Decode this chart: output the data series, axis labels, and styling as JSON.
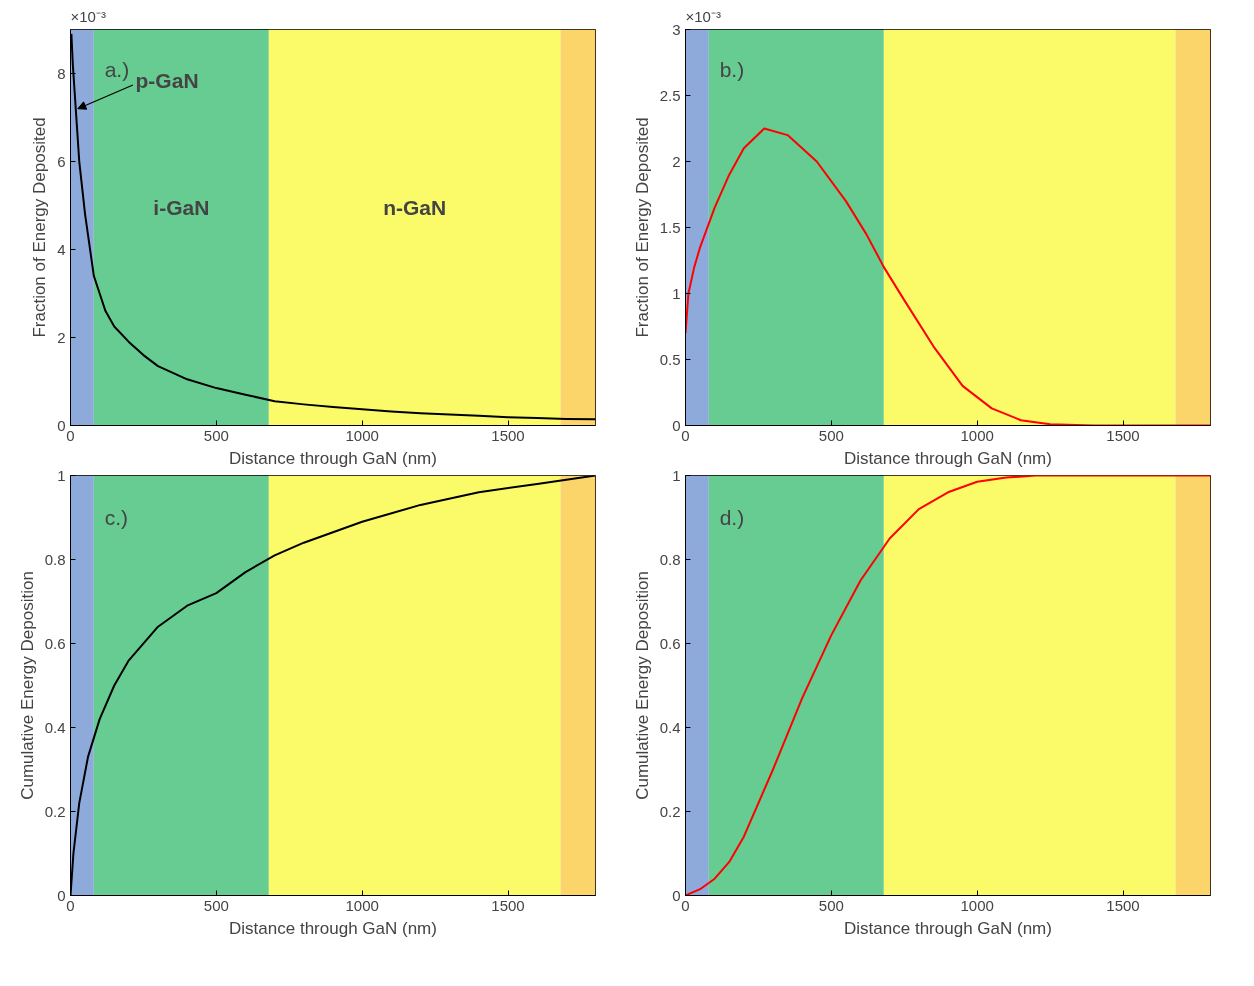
{
  "chart_data": [
    {
      "type": "line",
      "xlabel": "Distance through GaN (nm)",
      "ylabel": "Fraction of Energy Deposited",
      "xlim": [
        0,
        1800
      ],
      "xticks": [
        0,
        500,
        1000,
        1500
      ],
      "ylim": [
        0,
        9
      ],
      "yticks": [
        0,
        2,
        4,
        6,
        8
      ],
      "bands": [
        {
          "axis": "x",
          "from": 0,
          "to": 80,
          "label": null,
          "color": "#8eaadb"
        },
        {
          "axis": "x",
          "from": 80,
          "to": 680,
          "label": "i-GaN",
          "color": "#66cc92"
        },
        {
          "axis": "x",
          "from": 680,
          "to": 1680,
          "label": "n-GaN",
          "color": "#fbfb6a"
        },
        {
          "axis": "x",
          "from": 1680,
          "to": 1800,
          "label": null,
          "color": "#fbd46a"
        }
      ],
      "annotations": [
        "a.)",
        "×10⁻³",
        {
          "text": "p-GaN",
          "x": 25,
          "y": 7.2
        }
      ],
      "series": [
        {
          "color": "#000000",
          "x": [
            3,
            8,
            15,
            22,
            30,
            40,
            50,
            65,
            80,
            100,
            120,
            150,
            200,
            250,
            300,
            400,
            500,
            600,
            700,
            800,
            900,
            1000,
            1100,
            1200,
            1300,
            1400,
            1500,
            1600,
            1700,
            1800
          ],
          "values": [
            8.9,
            8.2,
            7.5,
            6.8,
            6.0,
            5.4,
            4.8,
            4.1,
            3.4,
            3.0,
            2.6,
            2.25,
            1.9,
            1.6,
            1.35,
            1.05,
            0.85,
            0.7,
            0.55,
            0.48,
            0.42,
            0.37,
            0.32,
            0.28,
            0.25,
            0.22,
            0.19,
            0.17,
            0.15,
            0.14
          ]
        }
      ]
    },
    {
      "type": "line",
      "xlabel": "Distance through GaN (nm)",
      "ylabel": "Fraction of Energy Deposited",
      "xlim": [
        0,
        1800
      ],
      "xticks": [
        0,
        500,
        1000,
        1500
      ],
      "ylim": [
        0,
        3
      ],
      "yticks": [
        0,
        0.5,
        1,
        1.5,
        2,
        2.5,
        3
      ],
      "bands": [
        {
          "axis": "x",
          "from": 0,
          "to": 80,
          "label": null,
          "color": "#8eaadb"
        },
        {
          "axis": "x",
          "from": 80,
          "to": 680,
          "label": null,
          "color": "#66cc92"
        },
        {
          "axis": "x",
          "from": 680,
          "to": 1680,
          "label": null,
          "color": "#fbfb6a"
        },
        {
          "axis": "x",
          "from": 1680,
          "to": 1800,
          "label": null,
          "color": "#fbd46a"
        }
      ],
      "annotations": [
        "b.)",
        "×10⁻³"
      ],
      "series": [
        {
          "color": "#ff0000",
          "x": [
            0,
            10,
            30,
            50,
            100,
            150,
            200,
            270,
            350,
            450,
            550,
            620,
            680,
            750,
            850,
            950,
            1050,
            1150,
            1250,
            1400,
            1600,
            1800
          ],
          "values": [
            0.7,
            1.0,
            1.2,
            1.35,
            1.65,
            1.9,
            2.1,
            2.25,
            2.2,
            2.0,
            1.7,
            1.45,
            1.2,
            0.95,
            0.6,
            0.3,
            0.13,
            0.04,
            0.01,
            0,
            0,
            0
          ]
        }
      ]
    },
    {
      "type": "line",
      "xlabel": "Distance through GaN (nm)",
      "ylabel": "Cumulative Energy Deposition",
      "xlim": [
        0,
        1800
      ],
      "xticks": [
        0,
        500,
        1000,
        1500
      ],
      "ylim": [
        0,
        1
      ],
      "yticks": [
        0,
        0.2,
        0.4,
        0.6,
        0.8,
        1
      ],
      "bands": [
        {
          "axis": "x",
          "from": 0,
          "to": 80,
          "label": null,
          "color": "#8eaadb"
        },
        {
          "axis": "x",
          "from": 80,
          "to": 680,
          "label": null,
          "color": "#66cc92"
        },
        {
          "axis": "x",
          "from": 680,
          "to": 1680,
          "label": null,
          "color": "#fbfb6a"
        },
        {
          "axis": "x",
          "from": 1680,
          "to": 1800,
          "label": null,
          "color": "#fbd46a"
        }
      ],
      "annotations": [
        "c.)"
      ],
      "series": [
        {
          "color": "#000000",
          "x": [
            0,
            10,
            30,
            60,
            100,
            150,
            200,
            300,
            400,
            500,
            600,
            700,
            800,
            1000,
            1200,
            1400,
            1600,
            1800
          ],
          "values": [
            0,
            0.1,
            0.22,
            0.33,
            0.42,
            0.5,
            0.56,
            0.64,
            0.69,
            0.72,
            0.77,
            0.81,
            0.84,
            0.89,
            0.93,
            0.96,
            0.98,
            1
          ]
        }
      ]
    },
    {
      "type": "line",
      "xlabel": "Distance through GaN (nm)",
      "ylabel": "Cumulative Energy Deposition",
      "xlim": [
        0,
        1800
      ],
      "xticks": [
        0,
        500,
        1000,
        1500
      ],
      "ylim": [
        0,
        1
      ],
      "yticks": [
        0,
        0.2,
        0.4,
        0.6,
        0.8,
        1
      ],
      "bands": [
        {
          "axis": "x",
          "from": 0,
          "to": 80,
          "label": null,
          "color": "#8eaadb"
        },
        {
          "axis": "x",
          "from": 80,
          "to": 680,
          "label": null,
          "color": "#66cc92"
        },
        {
          "axis": "x",
          "from": 680,
          "to": 1680,
          "label": null,
          "color": "#fbfb6a"
        },
        {
          "axis": "x",
          "from": 1680,
          "to": 1800,
          "label": null,
          "color": "#fbd46a"
        }
      ],
      "annotations": [
        "d.)"
      ],
      "series": [
        {
          "color": "#ff0000",
          "x": [
            0,
            50,
            100,
            150,
            200,
            300,
            400,
            500,
            600,
            700,
            800,
            900,
            1000,
            1100,
            1200,
            1400,
            1800
          ],
          "values": [
            0,
            0.015,
            0.04,
            0.08,
            0.14,
            0.3,
            0.47,
            0.62,
            0.75,
            0.85,
            0.92,
            0.96,
            0.985,
            0.995,
            1,
            1,
            1
          ]
        }
      ]
    }
  ]
}
